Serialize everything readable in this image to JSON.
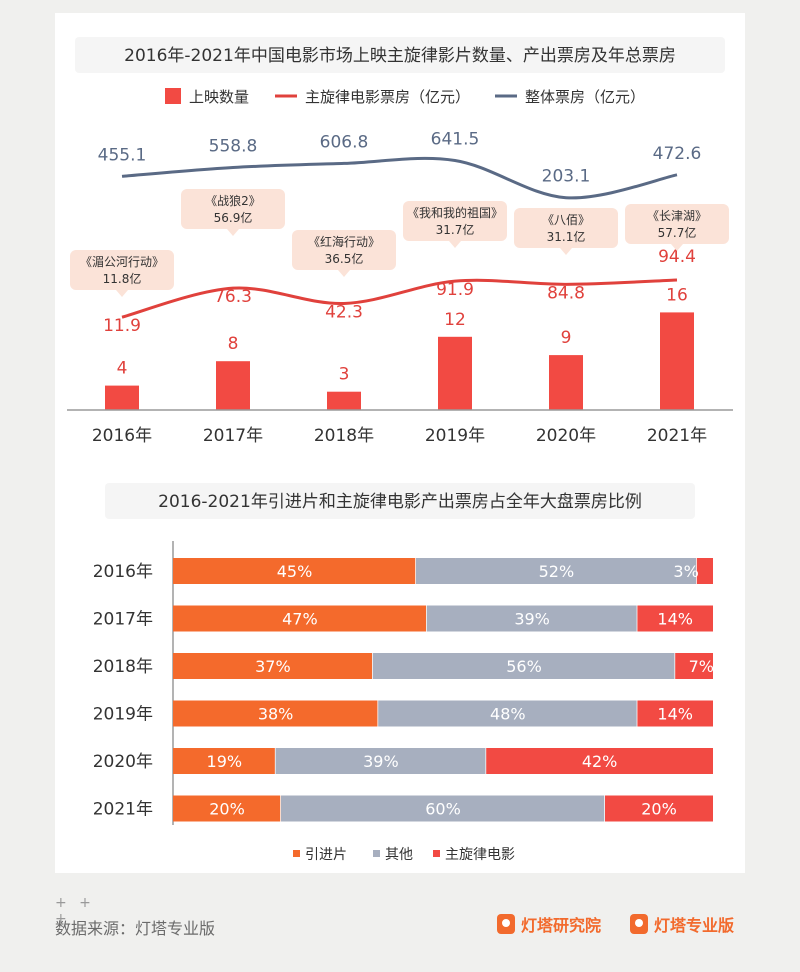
{
  "chart_data": [
    {
      "type": "bar+line",
      "title": "2016年-2021年中国电影市场上映主旋律影片数量、产出票房及年总票房",
      "categories": [
        "2016年",
        "2017年",
        "2018年",
        "2019年",
        "2020年",
        "2021年"
      ],
      "series": [
        {
          "name": "上映数量",
          "kind": "bar",
          "color": "#f24a43",
          "values": [
            4,
            8,
            3,
            12,
            9,
            16
          ]
        },
        {
          "name": "主旋律电影票房（亿元）",
          "kind": "line",
          "color": "#e0413c",
          "values": [
            11.9,
            76.3,
            42.3,
            91.9,
            84.8,
            94.4
          ]
        },
        {
          "name": "整体票房（亿元）",
          "kind": "line",
          "color": "#5a6a85",
          "values": [
            455.1,
            558.8,
            606.8,
            641.5,
            203.1,
            472.6
          ]
        }
      ],
      "annotations": [
        {
          "film": "《湄公河行动》",
          "value": "11.8亿"
        },
        {
          "film": "《战狼2》",
          "value": "56.9亿"
        },
        {
          "film": "《红海行动》",
          "value": "36.5亿"
        },
        {
          "film": "《我和我的祖国》",
          "value": "31.7亿"
        },
        {
          "film": "《八佰》",
          "value": "31.1亿"
        },
        {
          "film": "《长津湖》",
          "value": "57.7亿"
        }
      ],
      "legend": "top"
    },
    {
      "type": "stacked-bar-horizontal",
      "title": "2016-2021年引进片和主旋律电影产出票房占全年大盘票房比例",
      "categories": [
        "2016年",
        "2017年",
        "2018年",
        "2019年",
        "2020年",
        "2021年"
      ],
      "series": [
        {
          "name": "引进片",
          "color": "#f46a2c",
          "values": [
            45,
            47,
            37,
            38,
            19,
            20
          ]
        },
        {
          "name": "其他",
          "color": "#a7afbf",
          "values": [
            52,
            39,
            56,
            48,
            39,
            60
          ]
        },
        {
          "name": "主旋律电影",
          "color": "#f24a43",
          "values": [
            3,
            14,
            7,
            14,
            42,
            20
          ]
        }
      ],
      "unit": "%",
      "legend": "bottom"
    }
  ],
  "footer": {
    "plus": "+ +\n+",
    "source": "数据来源：灯塔专业版",
    "brand1": "灯塔研究院",
    "brand2": "灯塔专业版"
  }
}
